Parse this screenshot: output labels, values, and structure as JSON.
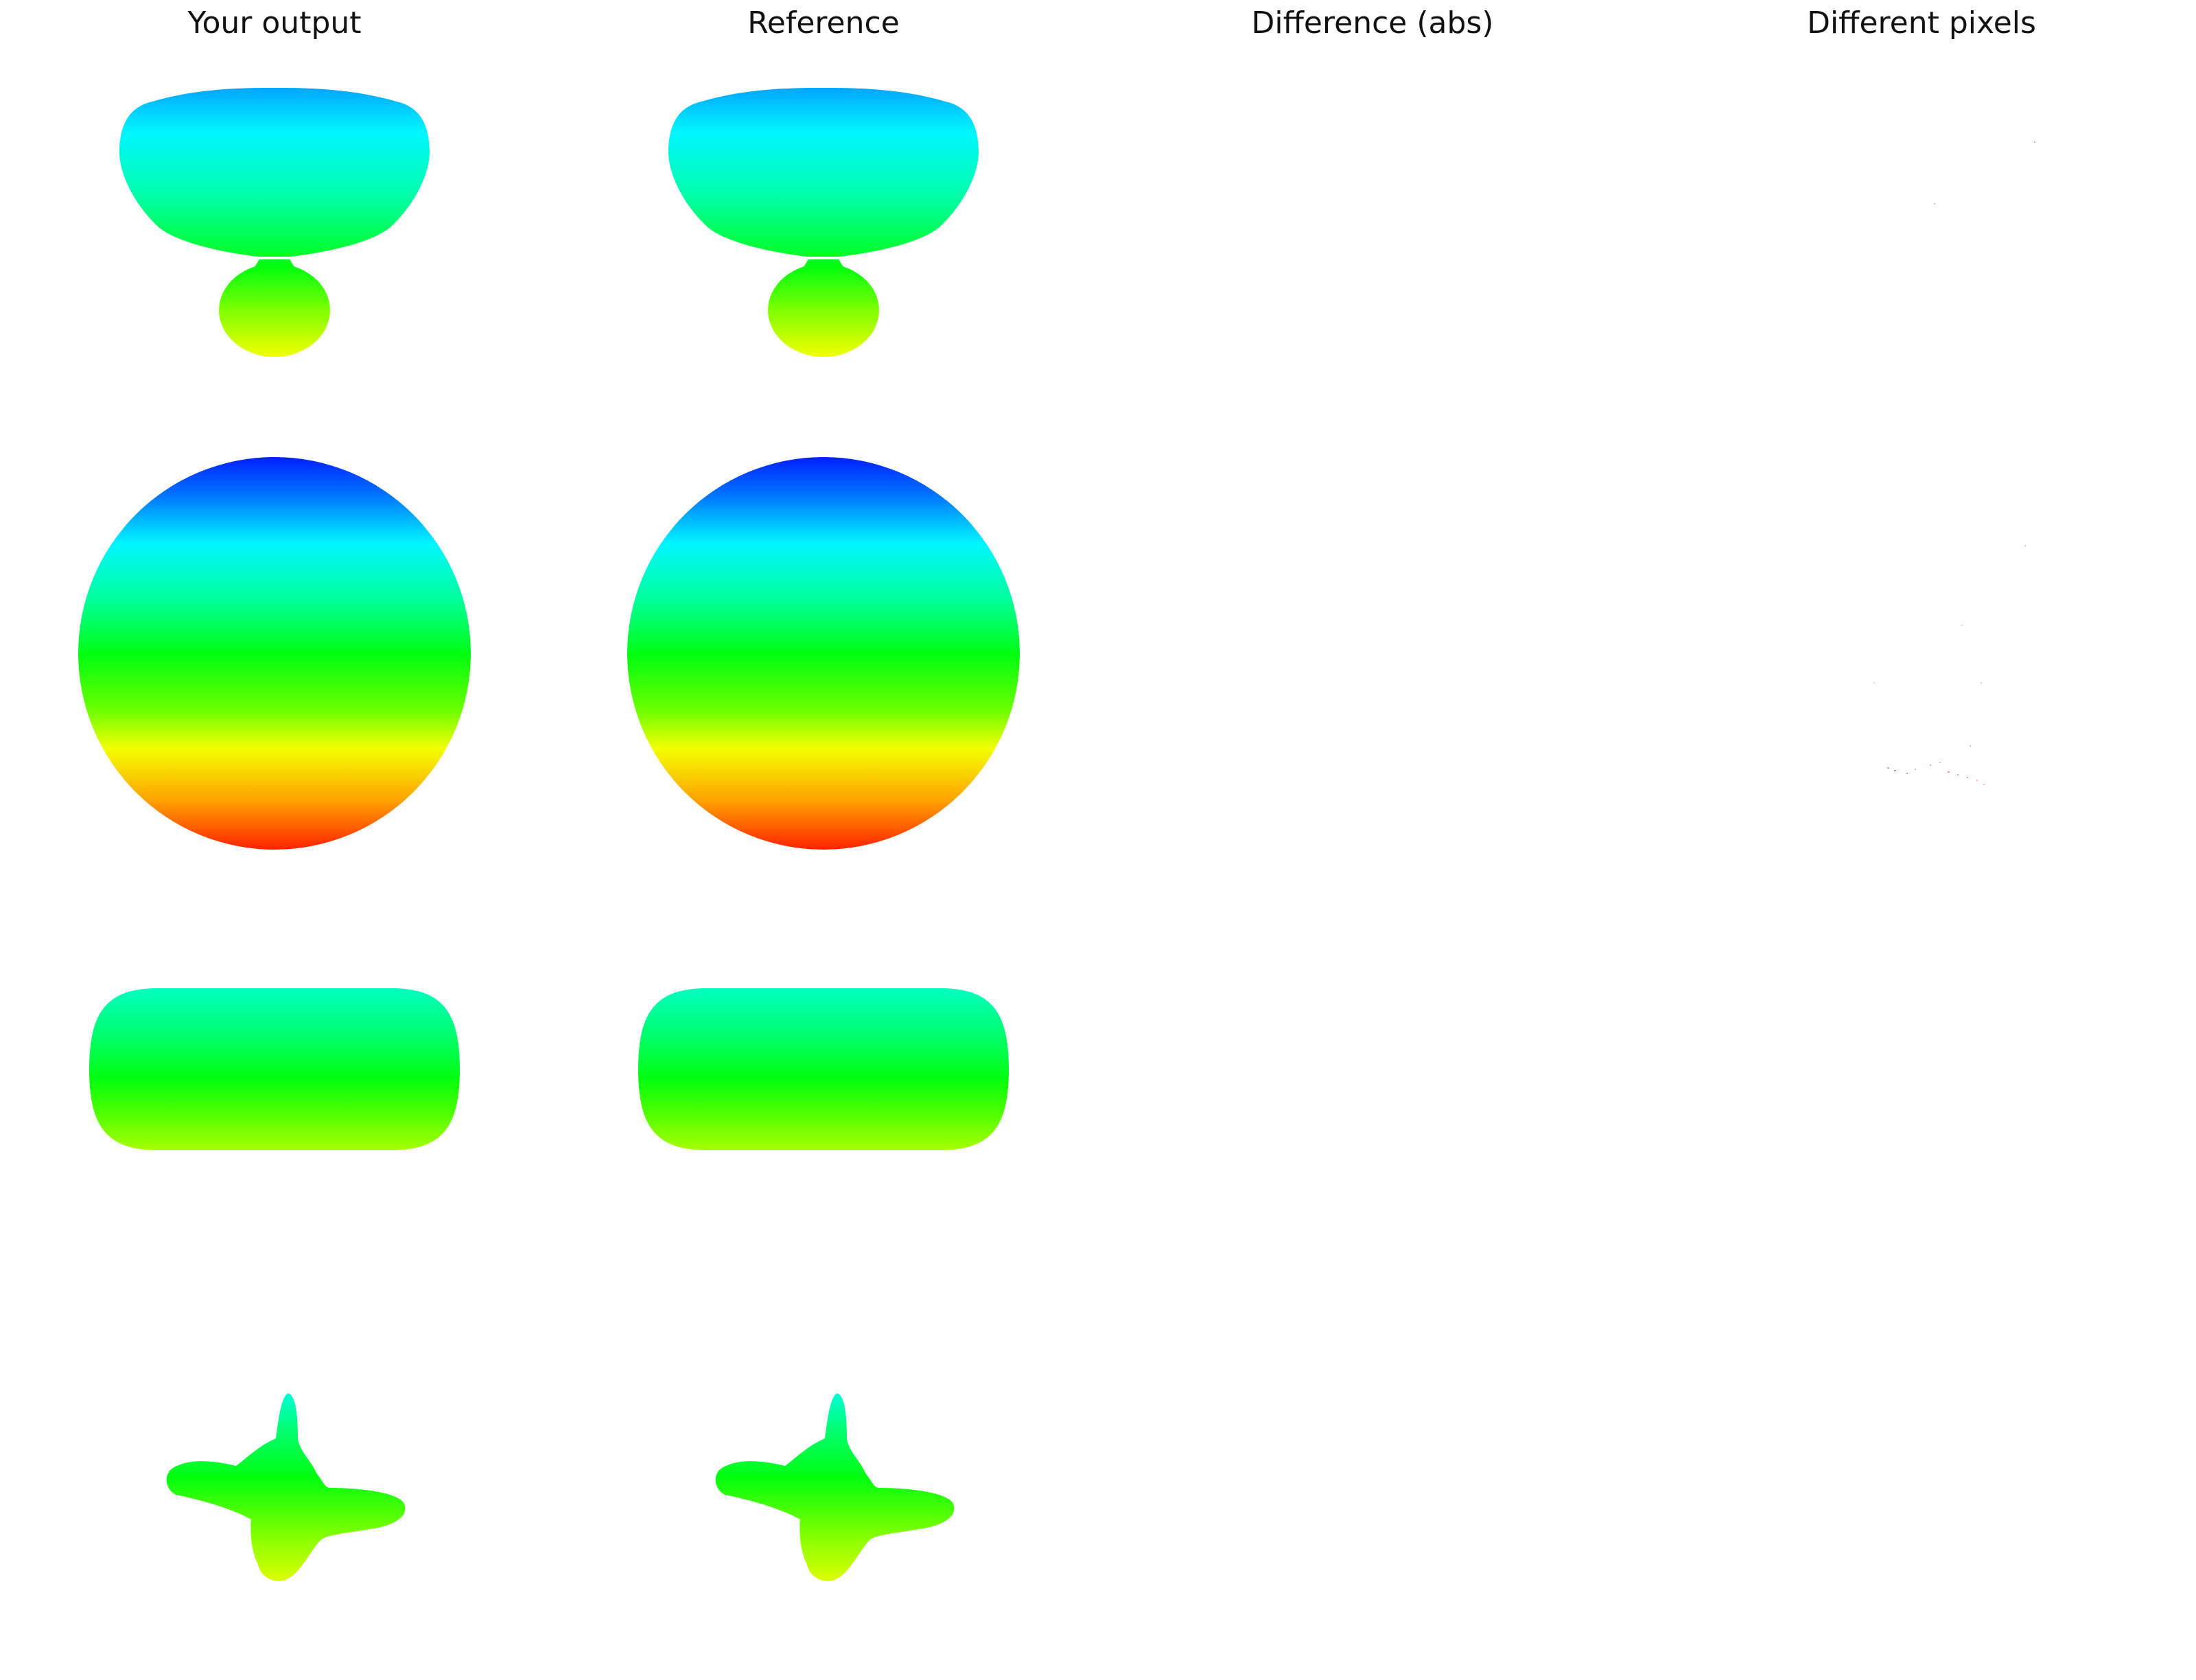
{
  "titles": {
    "output": "Your output",
    "reference": "Reference",
    "difference": "Difference (abs)",
    "different_pixels": "Different pixels"
  },
  "colors": {
    "background": "#ffffff",
    "title_text": "#111111",
    "colormap": [
      "#0020ff",
      "#00f6ff",
      "#00ff9c",
      "#00ff10",
      "#6aff00",
      "#f3ff00",
      "#ffa300",
      "#ff2000"
    ],
    "diff_speck": "#ff4d4d"
  },
  "shapes": [
    {
      "name": "bulb-shape"
    },
    {
      "name": "sphere-shape"
    },
    {
      "name": "pill-shape"
    },
    {
      "name": "star-shape"
    }
  ]
}
